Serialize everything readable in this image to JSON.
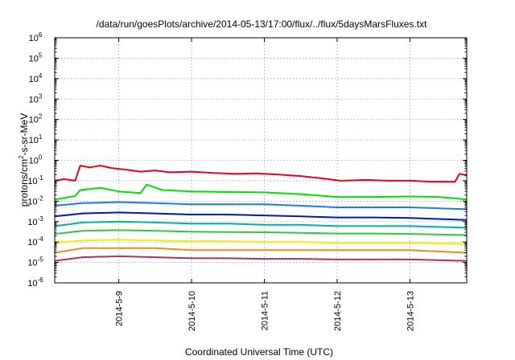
{
  "chart_data": {
    "type": "line",
    "title": "/data/run/goesPlots/archive/2014-05-13/17:00/flux/../flux/5daysMarsFluxes.txt",
    "xlabel": "Coordinated Universal Time (UTC)",
    "ylabel_parts": [
      "protons/cm",
      "2",
      "-s-sr-MeV"
    ],
    "y_scale": "log",
    "ylim_exp": [
      -6,
      6
    ],
    "yticks": [
      {
        "base": "10",
        "exp": "-6"
      },
      {
        "base": "10",
        "exp": "-5"
      },
      {
        "base": "10",
        "exp": "-4"
      },
      {
        "base": "10",
        "exp": "-3"
      },
      {
        "base": "10",
        "exp": "-2"
      },
      {
        "base": "10",
        "exp": "-1"
      },
      {
        "base": "10",
        "exp": "0"
      },
      {
        "base": "10",
        "exp": "1"
      },
      {
        "base": "10",
        "exp": "2"
      },
      {
        "base": "10",
        "exp": "3"
      },
      {
        "base": "10",
        "exp": "4"
      },
      {
        "base": "10",
        "exp": "5"
      },
      {
        "base": "10",
        "exp": "6"
      }
    ],
    "xlim_days": [
      8.12,
      13.78
    ],
    "xticks": [
      {
        "label": "2014-5-9",
        "day": 9
      },
      {
        "label": "2014-5-10",
        "day": 10
      },
      {
        "label": "2014-5-11",
        "day": 11
      },
      {
        "label": "2014-5-12",
        "day": 12
      },
      {
        "label": "2014-5-13",
        "day": 13
      }
    ],
    "grid": true,
    "series": [
      {
        "color": "#e8001c",
        "points": [
          [
            8.12,
            0.1
          ],
          [
            8.25,
            0.12
          ],
          [
            8.4,
            0.1
          ],
          [
            8.47,
            0.55
          ],
          [
            8.6,
            0.45
          ],
          [
            8.75,
            0.55
          ],
          [
            8.9,
            0.42
          ],
          [
            9.1,
            0.35
          ],
          [
            9.3,
            0.28
          ],
          [
            9.5,
            0.32
          ],
          [
            9.7,
            0.26
          ],
          [
            10.0,
            0.28
          ],
          [
            10.3,
            0.24
          ],
          [
            10.6,
            0.22
          ],
          [
            10.9,
            0.23
          ],
          [
            11.2,
            0.2
          ],
          [
            11.5,
            0.17
          ],
          [
            11.8,
            0.13
          ],
          [
            12.05,
            0.1
          ],
          [
            12.4,
            0.11
          ],
          [
            12.7,
            0.1
          ],
          [
            13.0,
            0.1
          ],
          [
            13.3,
            0.09
          ],
          [
            13.62,
            0.09
          ],
          [
            13.68,
            0.22
          ],
          [
            13.78,
            0.18
          ]
        ]
      },
      {
        "color": "#00e000",
        "points": [
          [
            8.12,
            0.012
          ],
          [
            8.4,
            0.018
          ],
          [
            8.47,
            0.035
          ],
          [
            8.75,
            0.045
          ],
          [
            9.0,
            0.03
          ],
          [
            9.3,
            0.025
          ],
          [
            9.38,
            0.065
          ],
          [
            9.6,
            0.035
          ],
          [
            10.0,
            0.03
          ],
          [
            10.5,
            0.028
          ],
          [
            11.0,
            0.027
          ],
          [
            11.5,
            0.022
          ],
          [
            12.0,
            0.016
          ],
          [
            12.5,
            0.016
          ],
          [
            13.0,
            0.017
          ],
          [
            13.4,
            0.016
          ],
          [
            13.78,
            0.012
          ]
        ]
      },
      {
        "color": "#1a7be8",
        "points": [
          [
            8.12,
            0.006
          ],
          [
            8.5,
            0.008
          ],
          [
            9.0,
            0.009
          ],
          [
            9.5,
            0.008
          ],
          [
            10.0,
            0.007
          ],
          [
            10.5,
            0.007
          ],
          [
            11.0,
            0.007
          ],
          [
            11.5,
            0.006
          ],
          [
            12.0,
            0.005
          ],
          [
            12.5,
            0.005
          ],
          [
            13.0,
            0.005
          ],
          [
            13.78,
            0.004
          ]
        ]
      },
      {
        "color": "#0018b4",
        "points": [
          [
            8.12,
            0.0018
          ],
          [
            8.5,
            0.0025
          ],
          [
            9.0,
            0.0028
          ],
          [
            9.5,
            0.0025
          ],
          [
            10.0,
            0.0022
          ],
          [
            10.5,
            0.0022
          ],
          [
            11.0,
            0.002
          ],
          [
            11.5,
            0.0018
          ],
          [
            12.0,
            0.0016
          ],
          [
            12.5,
            0.0016
          ],
          [
            13.0,
            0.0015
          ],
          [
            13.78,
            0.0012
          ]
        ]
      },
      {
        "color": "#00b0a0",
        "points": [
          [
            8.12,
            0.0006
          ],
          [
            8.5,
            0.0009
          ],
          [
            9.0,
            0.001
          ],
          [
            9.5,
            0.0009
          ],
          [
            10.0,
            0.0008
          ],
          [
            10.5,
            0.0008
          ],
          [
            11.0,
            0.0007
          ],
          [
            11.5,
            0.0007
          ],
          [
            12.0,
            0.0006
          ],
          [
            12.5,
            0.0006
          ],
          [
            13.0,
            0.0006
          ],
          [
            13.78,
            0.0005
          ]
        ]
      },
      {
        "color": "#2ec83c",
        "points": [
          [
            8.12,
            0.00025
          ],
          [
            8.5,
            0.00035
          ],
          [
            9.0,
            0.00038
          ],
          [
            9.5,
            0.00035
          ],
          [
            10.0,
            0.00032
          ],
          [
            10.5,
            0.00031
          ],
          [
            11.0,
            0.0003
          ],
          [
            11.5,
            0.00028
          ],
          [
            12.0,
            0.00026
          ],
          [
            12.5,
            0.00026
          ],
          [
            13.0,
            0.00025
          ],
          [
            13.78,
            0.00022
          ]
        ]
      },
      {
        "color": "#f0f000",
        "points": [
          [
            8.12,
            9e-05
          ],
          [
            8.5,
            0.00012
          ],
          [
            9.0,
            0.00013
          ],
          [
            9.5,
            0.00012
          ],
          [
            10.0,
            0.00011
          ],
          [
            10.5,
            0.00011
          ],
          [
            11.0,
            0.0001
          ],
          [
            11.5,
            0.0001
          ],
          [
            12.0,
            9e-05
          ],
          [
            12.5,
            9e-05
          ],
          [
            13.0,
            9e-05
          ],
          [
            13.78,
            8e-05
          ]
        ]
      },
      {
        "color": "#f08a10",
        "points": [
          [
            8.12,
            3e-05
          ],
          [
            8.5,
            5e-05
          ],
          [
            9.0,
            5e-05
          ],
          [
            9.5,
            5e-05
          ],
          [
            10.0,
            4e-05
          ],
          [
            10.5,
            4e-05
          ],
          [
            11.0,
            4e-05
          ],
          [
            11.5,
            4e-05
          ],
          [
            12.0,
            4e-05
          ],
          [
            12.5,
            4e-05
          ],
          [
            13.0,
            4e-05
          ],
          [
            13.78,
            3e-05
          ]
        ]
      },
      {
        "color": "#a0346e",
        "points": [
          [
            8.12,
            1.2e-05
          ],
          [
            8.5,
            1.8e-05
          ],
          [
            9.0,
            2e-05
          ],
          [
            9.5,
            1.8e-05
          ],
          [
            10.0,
            1.6e-05
          ],
          [
            10.5,
            1.6e-05
          ],
          [
            11.0,
            1.5e-05
          ],
          [
            11.5,
            1.5e-05
          ],
          [
            12.0,
            1.4e-05
          ],
          [
            12.5,
            1.4e-05
          ],
          [
            13.0,
            1.4e-05
          ],
          [
            13.78,
            1.2e-05
          ]
        ]
      }
    ]
  }
}
